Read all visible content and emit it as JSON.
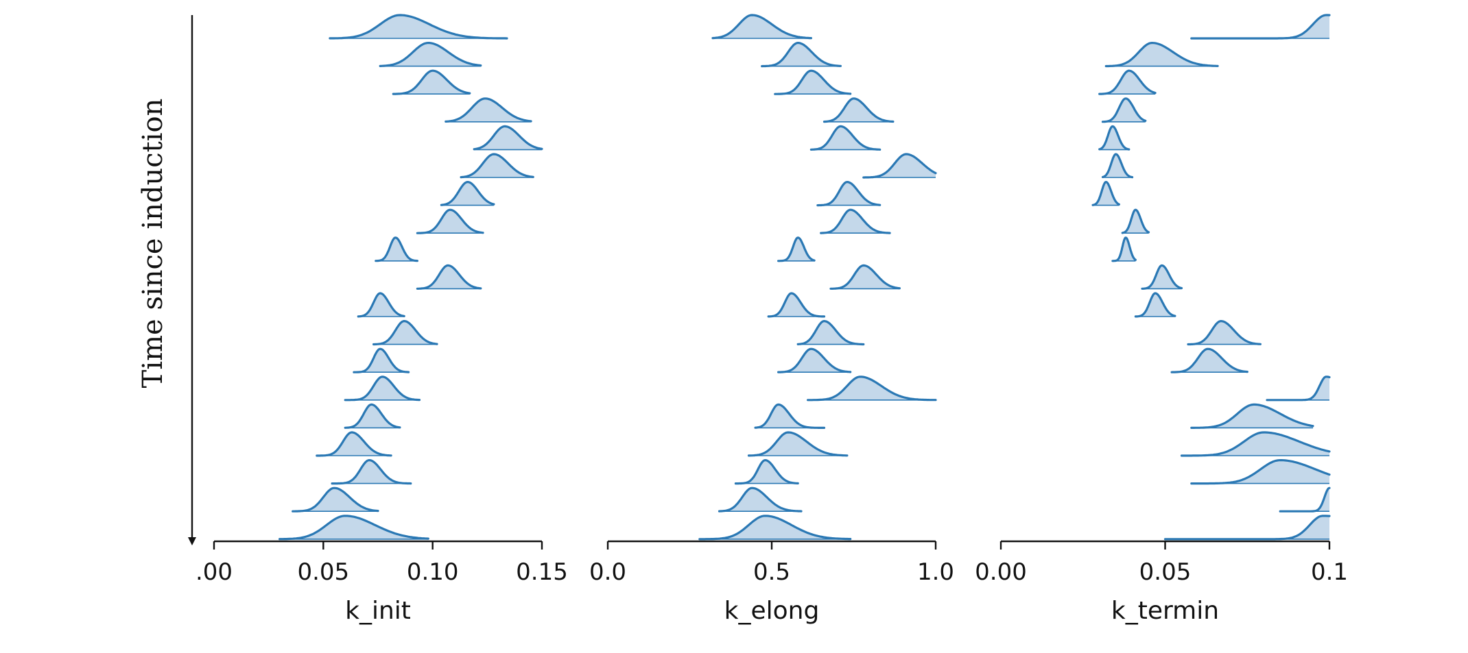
{
  "chart_data": {
    "type": "ridgeline",
    "ylabel": "Time since induction",
    "colors": {
      "line": "#2a78b4",
      "fill": "#c4d8ea",
      "axis": "#111111"
    },
    "panels": [
      {
        "xlabel": "k_init",
        "xlim": [
          0.0,
          0.15
        ],
        "ticks": [
          0.0,
          0.05,
          0.1,
          0.15
        ],
        "tick_labels": [
          ".00",
          "0.05",
          "0.10",
          "0.15"
        ],
        "rows": [
          {
            "mode": 0.085,
            "left": 0.053,
            "right": 0.134,
            "w": 0.009,
            "skew": 1.5
          },
          {
            "mode": 0.098,
            "left": 0.076,
            "right": 0.122,
            "w": 0.007,
            "skew": 1.3
          },
          {
            "mode": 0.1,
            "left": 0.082,
            "right": 0.117,
            "w": 0.005,
            "skew": 1.3
          },
          {
            "mode": 0.124,
            "left": 0.106,
            "right": 0.145,
            "w": 0.006,
            "skew": 1.3
          },
          {
            "mode": 0.133,
            "left": 0.119,
            "right": 0.15,
            "w": 0.005,
            "skew": 1.3
          },
          {
            "mode": 0.128,
            "left": 0.113,
            "right": 0.146,
            "w": 0.005,
            "skew": 1.3
          },
          {
            "mode": 0.116,
            "left": 0.104,
            "right": 0.128,
            "w": 0.004,
            "skew": 1.2
          },
          {
            "mode": 0.108,
            "left": 0.093,
            "right": 0.123,
            "w": 0.004,
            "skew": 1.3
          },
          {
            "mode": 0.083,
            "left": 0.074,
            "right": 0.093,
            "w": 0.0025,
            "skew": 1.2
          },
          {
            "mode": 0.107,
            "left": 0.093,
            "right": 0.122,
            "w": 0.004,
            "skew": 1.3
          },
          {
            "mode": 0.076,
            "left": 0.066,
            "right": 0.087,
            "w": 0.003,
            "skew": 1.3
          },
          {
            "mode": 0.087,
            "left": 0.073,
            "right": 0.102,
            "w": 0.004,
            "skew": 1.3
          },
          {
            "mode": 0.076,
            "left": 0.064,
            "right": 0.089,
            "w": 0.003,
            "skew": 1.3
          },
          {
            "mode": 0.077,
            "left": 0.06,
            "right": 0.094,
            "w": 0.004,
            "skew": 1.3
          },
          {
            "mode": 0.072,
            "left": 0.06,
            "right": 0.085,
            "w": 0.0035,
            "skew": 1.3
          },
          {
            "mode": 0.063,
            "left": 0.047,
            "right": 0.081,
            "w": 0.004,
            "skew": 1.4
          },
          {
            "mode": 0.071,
            "left": 0.054,
            "right": 0.09,
            "w": 0.004,
            "skew": 1.3
          },
          {
            "mode": 0.055,
            "left": 0.036,
            "right": 0.075,
            "w": 0.005,
            "skew": 1.4
          },
          {
            "mode": 0.06,
            "left": 0.03,
            "right": 0.098,
            "w": 0.0085,
            "skew": 1.6
          }
        ]
      },
      {
        "xlabel": "k_elong",
        "xlim": [
          0.0,
          1.0
        ],
        "ticks": [
          0.0,
          0.5,
          1.0
        ],
        "tick_labels": [
          "0.0",
          "0.5",
          "1.0"
        ],
        "rows": [
          {
            "mode": 0.44,
            "left": 0.32,
            "right": 0.62,
            "w": 0.04,
            "skew": 1.5
          },
          {
            "mode": 0.58,
            "left": 0.47,
            "right": 0.71,
            "w": 0.03,
            "skew": 1.4
          },
          {
            "mode": 0.62,
            "left": 0.51,
            "right": 0.74,
            "w": 0.028,
            "skew": 1.4
          },
          {
            "mode": 0.75,
            "left": 0.66,
            "right": 0.87,
            "w": 0.028,
            "skew": 1.4
          },
          {
            "mode": 0.71,
            "left": 0.62,
            "right": 0.83,
            "w": 0.026,
            "skew": 1.4
          },
          {
            "mode": 0.91,
            "left": 0.78,
            "right": 1.0,
            "w": 0.035,
            "skew": 1.4
          },
          {
            "mode": 0.73,
            "left": 0.64,
            "right": 0.83,
            "w": 0.024,
            "skew": 1.4
          },
          {
            "mode": 0.74,
            "left": 0.65,
            "right": 0.86,
            "w": 0.026,
            "skew": 1.4
          },
          {
            "mode": 0.58,
            "left": 0.52,
            "right": 0.63,
            "w": 0.015,
            "skew": 1.2
          },
          {
            "mode": 0.78,
            "left": 0.68,
            "right": 0.89,
            "w": 0.028,
            "skew": 1.4
          },
          {
            "mode": 0.56,
            "left": 0.49,
            "right": 0.66,
            "w": 0.02,
            "skew": 1.4
          },
          {
            "mode": 0.66,
            "left": 0.58,
            "right": 0.78,
            "w": 0.025,
            "skew": 1.4
          },
          {
            "mode": 0.62,
            "left": 0.52,
            "right": 0.74,
            "w": 0.028,
            "skew": 1.4
          },
          {
            "mode": 0.77,
            "left": 0.61,
            "right": 1.0,
            "w": 0.04,
            "skew": 1.6
          },
          {
            "mode": 0.52,
            "left": 0.45,
            "right": 0.66,
            "w": 0.022,
            "skew": 1.5
          },
          {
            "mode": 0.55,
            "left": 0.43,
            "right": 0.73,
            "w": 0.035,
            "skew": 1.6
          },
          {
            "mode": 0.48,
            "left": 0.39,
            "right": 0.58,
            "w": 0.022,
            "skew": 1.4
          },
          {
            "mode": 0.44,
            "left": 0.34,
            "right": 0.59,
            "w": 0.03,
            "skew": 1.5
          },
          {
            "mode": 0.48,
            "left": 0.28,
            "right": 0.74,
            "w": 0.05,
            "skew": 1.6
          }
        ]
      },
      {
        "xlabel": "k_termin",
        "xlim": [
          0.0,
          0.1
        ],
        "ticks": [
          0.0,
          0.05,
          0.1
        ],
        "tick_labels": [
          "0.00",
          "0.05",
          "0.1"
        ],
        "rows": [
          {
            "mode": 0.099,
            "left": 0.058,
            "right": 0.1,
            "w": 0.004,
            "skew": 3.0
          },
          {
            "mode": 0.046,
            "left": 0.032,
            "right": 0.066,
            "w": 0.004,
            "skew": 1.6
          },
          {
            "mode": 0.039,
            "left": 0.03,
            "right": 0.047,
            "w": 0.0025,
            "skew": 1.3
          },
          {
            "mode": 0.038,
            "left": 0.031,
            "right": 0.044,
            "w": 0.002,
            "skew": 1.2
          },
          {
            "mode": 0.034,
            "left": 0.03,
            "right": 0.039,
            "w": 0.0014,
            "skew": 1.2
          },
          {
            "mode": 0.035,
            "left": 0.031,
            "right": 0.04,
            "w": 0.0014,
            "skew": 1.2
          },
          {
            "mode": 0.032,
            "left": 0.028,
            "right": 0.036,
            "w": 0.0013,
            "skew": 1.2
          },
          {
            "mode": 0.041,
            "left": 0.037,
            "right": 0.045,
            "w": 0.0013,
            "skew": 1.2
          },
          {
            "mode": 0.038,
            "left": 0.034,
            "right": 0.041,
            "w": 0.001,
            "skew": 1.2
          },
          {
            "mode": 0.049,
            "left": 0.043,
            "right": 0.055,
            "w": 0.0017,
            "skew": 1.3
          },
          {
            "mode": 0.047,
            "left": 0.041,
            "right": 0.053,
            "w": 0.0017,
            "skew": 1.3
          },
          {
            "mode": 0.067,
            "left": 0.057,
            "right": 0.079,
            "w": 0.0028,
            "skew": 1.4
          },
          {
            "mode": 0.063,
            "left": 0.052,
            "right": 0.075,
            "w": 0.003,
            "skew": 1.4
          },
          {
            "mode": 0.099,
            "left": 0.081,
            "right": 0.1,
            "w": 0.002,
            "skew": 2.5
          },
          {
            "mode": 0.077,
            "left": 0.058,
            "right": 0.095,
            "w": 0.005,
            "skew": 1.6
          },
          {
            "mode": 0.08,
            "left": 0.055,
            "right": 0.1,
            "w": 0.006,
            "skew": 1.8
          },
          {
            "mode": 0.085,
            "left": 0.058,
            "right": 0.1,
            "w": 0.006,
            "skew": 1.8
          },
          {
            "mode": 0.1,
            "left": 0.085,
            "right": 0.1,
            "w": 0.0015,
            "skew": 3.0
          },
          {
            "mode": 0.098,
            "left": 0.05,
            "right": 0.1,
            "w": 0.004,
            "skew": 3.5
          }
        ]
      }
    ]
  }
}
